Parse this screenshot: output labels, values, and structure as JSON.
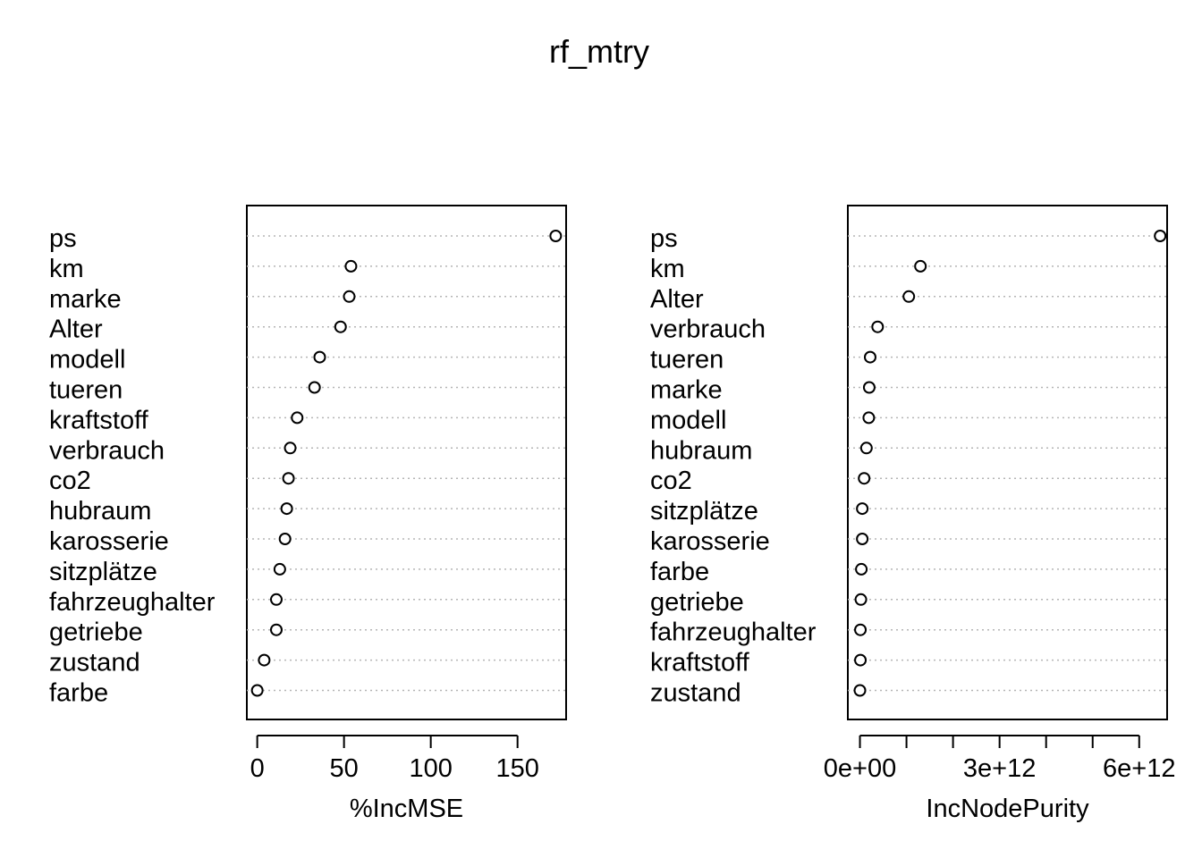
{
  "title": "rf_mtry",
  "chart_data": [
    {
      "type": "scatter",
      "xlabel": "%IncMSE",
      "xlim": [
        -6,
        178
      ],
      "xticks": [
        0,
        50,
        100,
        150
      ],
      "xtick_labels": [
        "0",
        "50",
        "100",
        "150"
      ],
      "grid": "horizontal dotted",
      "categories": [
        "ps",
        "km",
        "marke",
        "Alter",
        "modell",
        "tueren",
        "kraftstoff",
        "verbrauch",
        "co2",
        "hubraum",
        "karosserie",
        "sitzplätze",
        "fahrzeughalter",
        "getriebe",
        "zustand",
        "farbe"
      ],
      "values": [
        172,
        54,
        53,
        48,
        36,
        33,
        23,
        19,
        18,
        17,
        16,
        13,
        11,
        11,
        4,
        0
      ]
    },
    {
      "type": "scatter",
      "xlabel": "IncNodePurity",
      "xlim": [
        -260000000000.0,
        6600000000000.0
      ],
      "xticks": [
        0,
        1000000000000.0,
        2000000000000.0,
        3000000000000.0,
        4000000000000.0,
        5000000000000.0,
        6000000000000.0
      ],
      "xtick_labels": [
        "0e+00",
        "",
        "",
        "3e+12",
        "",
        "",
        "6e+12"
      ],
      "grid": "horizontal dotted",
      "categories": [
        "ps",
        "km",
        "Alter",
        "verbrauch",
        "tueren",
        "marke",
        "modell",
        "hubraum",
        "co2",
        "sitzplätze",
        "karosserie",
        "farbe",
        "getriebe",
        "fahrzeughalter",
        "kraftstoff",
        "zustand"
      ],
      "values": [
        6450000000000.0,
        1300000000000.0,
        1050000000000.0,
        380000000000.0,
        220000000000.0,
        200000000000.0,
        190000000000.0,
        140000000000.0,
        90000000000.0,
        50000000000.0,
        50000000000.0,
        30000000000.0,
        20000000000.0,
        10000000000.0,
        10000000000.0,
        0
      ]
    }
  ]
}
